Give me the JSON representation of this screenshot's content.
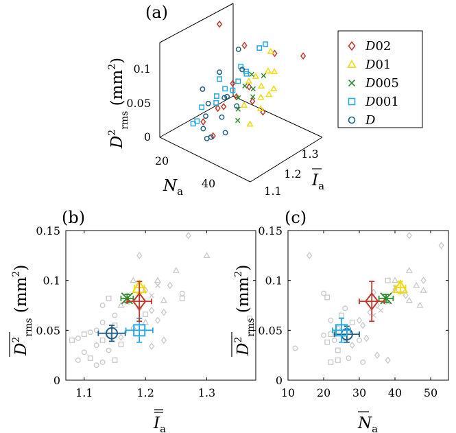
{
  "colors": {
    "D02": "#c0392b",
    "D01": "#f1d90a",
    "D005": "#2e8b2e",
    "D001": "#27a9e1",
    "D": "#1f5f85",
    "grey": "#c8c8c8"
  },
  "legend": [
    {
      "key": "D02",
      "label": "D02",
      "marker": "diamond"
    },
    {
      "key": "D01",
      "label": "D01",
      "marker": "triangle"
    },
    {
      "key": "D005",
      "label": "D005",
      "marker": "cross"
    },
    {
      "key": "D001",
      "label": "D001",
      "marker": "square"
    },
    {
      "key": "D",
      "label": "D",
      "marker": "circle"
    }
  ],
  "chart_data": [
    {
      "id": "a",
      "panel_label": "(a)",
      "type": "scatter",
      "title": "",
      "xlabel": "N_a",
      "ylabel": "I_a",
      "zlabel": "D^2_rms (mm^2)",
      "xticks": [
        "20",
        "40"
      ],
      "yticks": [
        "1.1",
        "1.2",
        "1.3"
      ],
      "zticks": [
        "0",
        "0.05",
        "0.1"
      ],
      "series": [
        {
          "name": "D02",
          "points": [
            [
              18,
              1.25,
              0.14
            ],
            [
              25,
              1.3,
              0.11
            ],
            [
              40,
              1.3,
              0.12
            ],
            [
              52,
              1.32,
              0.13
            ],
            [
              30,
              1.2,
              0.08
            ],
            [
              34,
              1.18,
              0.07
            ],
            [
              28,
              1.15,
              0.05
            ],
            [
              36,
              1.22,
              0.08
            ],
            [
              42,
              1.18,
              0.075
            ],
            [
              24,
              1.12,
              0.03
            ],
            [
              30,
              1.11,
              0.02
            ],
            [
              45,
              1.2,
              0.06
            ],
            [
              32,
              1.14,
              0.06
            ]
          ]
        },
        {
          "name": "D01",
          "points": [
            [
              36,
              1.25,
              0.09
            ],
            [
              40,
              1.27,
              0.1
            ],
            [
              42,
              1.22,
              0.09
            ],
            [
              45,
              1.25,
              0.085
            ],
            [
              38,
              1.2,
              0.095
            ],
            [
              44,
              1.2,
              0.08
            ],
            [
              40,
              1.16,
              0.07
            ],
            [
              46,
              1.18,
              0.07
            ],
            [
              48,
              1.2,
              0.09
            ],
            [
              42,
              1.28,
              0.1
            ],
            [
              38,
              1.3,
              0.12
            ],
            [
              44,
              1.15,
              0.05
            ]
          ]
        },
        {
          "name": "D005",
          "points": [
            [
              36,
              1.2,
              0.085
            ],
            [
              38,
              1.22,
              0.08
            ],
            [
              35,
              1.18,
              0.07
            ],
            [
              37,
              1.16,
              0.06
            ],
            [
              40,
              1.2,
              0.075
            ],
            [
              34,
              1.25,
              0.09
            ],
            [
              39,
              1.14,
              0.05
            ],
            [
              41,
              1.24,
              0.1
            ]
          ]
        },
        {
          "name": "D001",
          "points": [
            [
              18,
              1.25,
              0.06
            ],
            [
              22,
              1.2,
              0.05
            ],
            [
              24,
              1.22,
              0.06
            ],
            [
              26,
              1.3,
              0.07
            ],
            [
              28,
              1.28,
              0.08
            ],
            [
              20,
              1.15,
              0.04
            ],
            [
              25,
              1.17,
              0.05
            ],
            [
              30,
              1.2,
              0.07
            ],
            [
              22,
              1.11,
              0.03
            ],
            [
              27,
              1.35,
              0.1
            ],
            [
              19,
              1.12,
              0.02
            ],
            [
              30,
              1.35,
              0.11
            ],
            [
              24,
              1.28,
              0.06
            ],
            [
              21,
              1.32,
              0.07
            ]
          ]
        },
        {
          "name": "D",
          "points": [
            [
              15,
              1.2,
              0.05
            ],
            [
              20,
              1.18,
              0.04
            ],
            [
              22,
              1.15,
              0.03
            ],
            [
              25,
              1.22,
              0.05
            ],
            [
              28,
              1.18,
              0.06
            ],
            [
              24,
              1.12,
              0.02
            ],
            [
              30,
              1.15,
              0.04
            ],
            [
              18,
              1.25,
              0.07
            ],
            [
              26,
              1.28,
              0.08
            ],
            [
              32,
              1.2,
              0.05
            ],
            [
              30,
              1.1,
              0.02
            ],
            [
              35,
              1.12,
              0.03
            ],
            [
              22,
              1.3,
              0.1
            ],
            [
              28,
              1.1,
              0.015
            ]
          ]
        }
      ]
    },
    {
      "id": "b",
      "panel_label": "(b)",
      "type": "scatter",
      "xlabel": "I_a (double overline)",
      "ylabel": "D^2_rms (mm^2)",
      "xlim": [
        1.07,
        1.38
      ],
      "ylim": [
        0,
        0.15
      ],
      "xticks": [
        "1.1",
        "1.2",
        "1.3"
      ],
      "yticks": [
        "0",
        "0.05",
        "0.1",
        "0.15"
      ],
      "grey_points": [
        {
          "m": "diamond",
          "x": 1.27,
          "y": 0.145
        },
        {
          "m": "diamond",
          "x": 1.19,
          "y": 0.125
        },
        {
          "m": "triangle",
          "x": 1.3,
          "y": 0.125
        },
        {
          "m": "triangle",
          "x": 1.25,
          "y": 0.11
        },
        {
          "m": "triangle",
          "x": 1.22,
          "y": 0.1
        },
        {
          "m": "diamond",
          "x": 1.24,
          "y": 0.095
        },
        {
          "m": "diamond",
          "x": 1.2,
          "y": 0.09
        },
        {
          "m": "cross",
          "x": 1.22,
          "y": 0.095
        },
        {
          "m": "triangle",
          "x": 1.18,
          "y": 0.1
        },
        {
          "m": "circle",
          "x": 1.26,
          "y": 0.087
        },
        {
          "m": "square",
          "x": 1.26,
          "y": 0.082
        },
        {
          "m": "cross",
          "x": 1.21,
          "y": 0.085
        },
        {
          "m": "triangle",
          "x": 1.23,
          "y": 0.08
        },
        {
          "m": "circle",
          "x": 1.17,
          "y": 0.085
        },
        {
          "m": "square",
          "x": 1.14,
          "y": 0.082
        },
        {
          "m": "circle",
          "x": 1.13,
          "y": 0.075
        },
        {
          "m": "triangle",
          "x": 1.16,
          "y": 0.075
        },
        {
          "m": "diamond",
          "x": 1.19,
          "y": 0.072
        },
        {
          "m": "cross",
          "x": 1.17,
          "y": 0.078
        },
        {
          "m": "diamond",
          "x": 1.21,
          "y": 0.07
        },
        {
          "m": "diamond",
          "x": 1.23,
          "y": 0.068
        },
        {
          "m": "square",
          "x": 1.2,
          "y": 0.066
        },
        {
          "m": "circle",
          "x": 1.15,
          "y": 0.065
        },
        {
          "m": "diamond",
          "x": 1.22,
          "y": 0.06
        },
        {
          "m": "circle",
          "x": 1.13,
          "y": 0.058
        },
        {
          "m": "triangle",
          "x": 1.2,
          "y": 0.058
        },
        {
          "m": "square",
          "x": 1.37,
          "y": 0.062
        },
        {
          "m": "square",
          "x": 1.15,
          "y": 0.055
        },
        {
          "m": "circle",
          "x": 1.12,
          "y": 0.05
        },
        {
          "m": "diamond",
          "x": 1.18,
          "y": 0.052
        },
        {
          "m": "circle",
          "x": 1.11,
          "y": 0.048
        },
        {
          "m": "square",
          "x": 1.1,
          "y": 0.046
        },
        {
          "m": "circle",
          "x": 1.14,
          "y": 0.045
        },
        {
          "m": "diamond",
          "x": 1.16,
          "y": 0.043
        },
        {
          "m": "circle",
          "x": 1.09,
          "y": 0.042
        },
        {
          "m": "square",
          "x": 1.13,
          "y": 0.04
        },
        {
          "m": "circle",
          "x": 1.12,
          "y": 0.035
        },
        {
          "m": "square",
          "x": 1.16,
          "y": 0.036
        },
        {
          "m": "diamond",
          "x": 1.21,
          "y": 0.034
        },
        {
          "m": "circle",
          "x": 1.14,
          "y": 0.03
        },
        {
          "m": "circle",
          "x": 1.1,
          "y": 0.028
        },
        {
          "m": "square",
          "x": 1.11,
          "y": 0.022
        },
        {
          "m": "circle",
          "x": 1.09,
          "y": 0.02
        },
        {
          "m": "square",
          "x": 1.15,
          "y": 0.02
        },
        {
          "m": "circle",
          "x": 1.13,
          "y": 0.018
        },
        {
          "m": "circle",
          "x": 1.12,
          "y": 0.015
        },
        {
          "m": "diamond",
          "x": 1.23,
          "y": 0.04
        },
        {
          "m": "square",
          "x": 1.08,
          "y": 0.04
        }
      ],
      "means": [
        {
          "name": "D02",
          "x": 1.19,
          "y": 0.079,
          "xerr": 0.02,
          "yerr": 0.02
        },
        {
          "name": "D01",
          "x": 1.19,
          "y": 0.093,
          "xerr": 0.008,
          "yerr": 0.006
        },
        {
          "name": "D005",
          "x": 1.17,
          "y": 0.082,
          "xerr": 0.01,
          "yerr": 0.004
        },
        {
          "name": "D001",
          "x": 1.19,
          "y": 0.05,
          "xerr": 0.022,
          "yerr": 0.012
        },
        {
          "name": "D",
          "x": 1.145,
          "y": 0.047,
          "xerr": 0.022,
          "yerr": 0.008
        }
      ]
    },
    {
      "id": "c",
      "panel_label": "(c)",
      "type": "scatter",
      "xlabel": "N_a (overline)",
      "ylabel": "D^2_rms (mm^2)",
      "xlim": [
        10,
        55
      ],
      "ylim": [
        0,
        0.15
      ],
      "xticks": [
        "10",
        "20",
        "30",
        "40",
        "50"
      ],
      "yticks": [
        "0",
        "0.05",
        "0.1",
        "0.15"
      ],
      "grey_points": [
        {
          "m": "diamond",
          "x": 16,
          "y": 0.125
        },
        {
          "m": "diamond",
          "x": 44,
          "y": 0.145
        },
        {
          "m": "diamond",
          "x": 53,
          "y": 0.135
        },
        {
          "m": "triangle",
          "x": 44,
          "y": 0.11
        },
        {
          "m": "triangle",
          "x": 40,
          "y": 0.1
        },
        {
          "m": "diamond",
          "x": 48,
          "y": 0.1
        },
        {
          "m": "triangle",
          "x": 46,
          "y": 0.095
        },
        {
          "m": "cross",
          "x": 40,
          "y": 0.093
        },
        {
          "m": "square",
          "x": 38,
          "y": 0.1
        },
        {
          "m": "triangle",
          "x": 48,
          "y": 0.09
        },
        {
          "m": "cross",
          "x": 42,
          "y": 0.088
        },
        {
          "m": "diamond",
          "x": 43,
          "y": 0.085
        },
        {
          "m": "triangle",
          "x": 44,
          "y": 0.08
        },
        {
          "m": "triangle",
          "x": 47,
          "y": 0.075
        },
        {
          "m": "circle",
          "x": 20,
          "y": 0.087
        },
        {
          "m": "square",
          "x": 21,
          "y": 0.083
        },
        {
          "m": "diamond",
          "x": 34,
          "y": 0.088
        },
        {
          "m": "cross",
          "x": 38,
          "y": 0.078
        },
        {
          "m": "diamond",
          "x": 35,
          "y": 0.075
        },
        {
          "m": "cross",
          "x": 36,
          "y": 0.07
        },
        {
          "m": "circle",
          "x": 26,
          "y": 0.072
        },
        {
          "m": "diamond",
          "x": 33,
          "y": 0.068
        },
        {
          "m": "square",
          "x": 25,
          "y": 0.065
        },
        {
          "m": "cross",
          "x": 34,
          "y": 0.065
        },
        {
          "m": "diamond",
          "x": 30,
          "y": 0.06
        },
        {
          "m": "circle",
          "x": 22,
          "y": 0.06
        },
        {
          "m": "square",
          "x": 28,
          "y": 0.058
        },
        {
          "m": "diamond",
          "x": 31,
          "y": 0.055
        },
        {
          "m": "circle",
          "x": 24,
          "y": 0.052
        },
        {
          "m": "square",
          "x": 22,
          "y": 0.046
        },
        {
          "m": "circle",
          "x": 20,
          "y": 0.045
        },
        {
          "m": "square",
          "x": 26,
          "y": 0.042
        },
        {
          "m": "diamond",
          "x": 32,
          "y": 0.042
        },
        {
          "m": "circle",
          "x": 23,
          "y": 0.04
        },
        {
          "m": "circle",
          "x": 30,
          "y": 0.04
        },
        {
          "m": "square",
          "x": 21,
          "y": 0.038
        },
        {
          "m": "diamond",
          "x": 28,
          "y": 0.035
        },
        {
          "m": "circle",
          "x": 12,
          "y": 0.032
        },
        {
          "m": "square",
          "x": 24,
          "y": 0.03
        },
        {
          "m": "circle",
          "x": 27,
          "y": 0.022
        },
        {
          "m": "diamond",
          "x": 35,
          "y": 0.025
        },
        {
          "m": "diamond",
          "x": 38,
          "y": 0.02
        },
        {
          "m": "square",
          "x": 22,
          "y": 0.018
        },
        {
          "m": "square",
          "x": 24,
          "y": 0.02
        },
        {
          "m": "circle",
          "x": 31,
          "y": 0.018
        },
        {
          "m": "triangle",
          "x": 40,
          "y": 0.09
        }
      ],
      "means": [
        {
          "name": "D02",
          "x": 33.5,
          "y": 0.079,
          "xerr": 3.5,
          "yerr": 0.02
        },
        {
          "name": "D01",
          "x": 41.5,
          "y": 0.093,
          "xerr": 1.5,
          "yerr": 0.006
        },
        {
          "name": "D005",
          "x": 37.5,
          "y": 0.082,
          "xerr": 2,
          "yerr": 0.004
        },
        {
          "name": "D001",
          "x": 25,
          "y": 0.05,
          "xerr": 2.5,
          "yerr": 0.012
        },
        {
          "name": "D",
          "x": 26.5,
          "y": 0.046,
          "xerr": 3.5,
          "yerr": 0.008
        }
      ]
    }
  ]
}
